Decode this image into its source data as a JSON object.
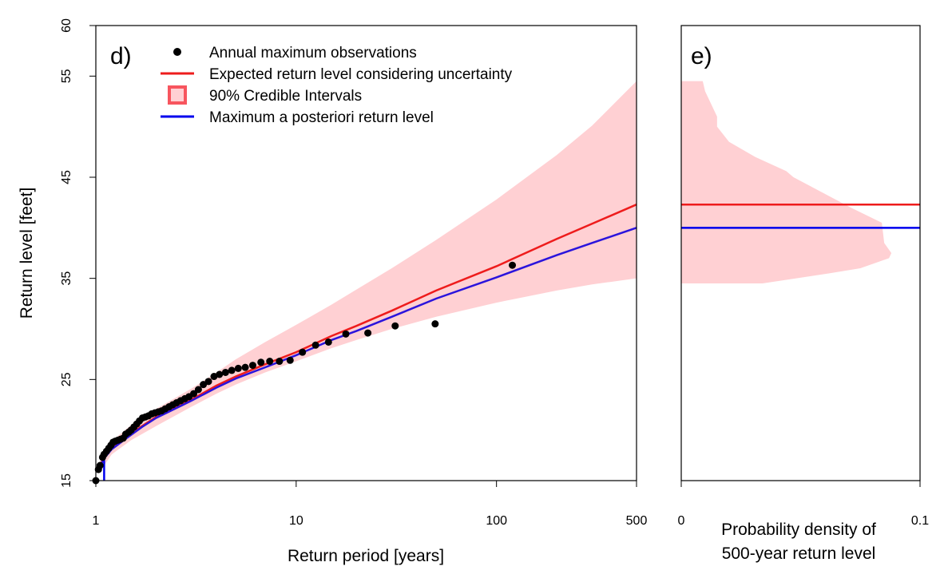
{
  "chart_data": [
    {
      "panel_label": "d)",
      "type": "line",
      "xlabel": "Return period [years]",
      "ylabel": "Return level [feet]",
      "x_scale": "log",
      "xlim": [
        1,
        500
      ],
      "ylim": [
        15,
        60
      ],
      "x_ticks": [
        1,
        10,
        100,
        500
      ],
      "x_tick_labels": [
        "1",
        "10",
        "100",
        "500"
      ],
      "y_ticks": [
        15,
        25,
        35,
        45,
        55,
        60
      ],
      "y_tick_labels": [
        "15",
        "25",
        "35",
        "45",
        "55",
        "60"
      ],
      "grid": false,
      "legend": {
        "placement": "top-left",
        "entries": [
          {
            "label": "Annual maximum observations",
            "symbol": "point",
            "color": "#000000"
          },
          {
            "label": "Expected return level considering uncertainty",
            "symbol": "line",
            "color": "#ee1c1c"
          },
          {
            "label": "90% Credible Intervals",
            "symbol": "box",
            "color": "#f7555e"
          },
          {
            "label": "Maximum a posteriori return level",
            "symbol": "line",
            "color": "#0000ee"
          }
        ]
      },
      "series": [
        {
          "name": "Expected return level considering uncertainty",
          "kind": "line",
          "color": "#ee1c1c",
          "x": [
            1.05,
            1.1,
            1.2,
            1.4,
            1.7,
            2,
            3,
            4,
            5,
            7,
            10,
            15,
            20,
            30,
            50,
            100,
            200,
            300,
            500
          ],
          "y": [
            16.5,
            17.3,
            18.2,
            19.2,
            20.4,
            21.3,
            23.0,
            24.4,
            25.3,
            26.5,
            27.7,
            29.3,
            30.3,
            31.8,
            33.8,
            36.2,
            38.9,
            40.4,
            42.3
          ]
        },
        {
          "name": "Maximum a posteriori return level",
          "kind": "line",
          "color": "#2b14dc",
          "x": [
            1.05,
            1.1,
            1.2,
            1.4,
            1.7,
            2,
            3,
            4,
            5,
            7,
            10,
            15,
            20,
            30,
            50,
            100,
            200,
            300,
            500
          ],
          "y": [
            16.4,
            17.2,
            18.1,
            19.1,
            20.3,
            21.2,
            22.9,
            24.2,
            25.1,
            26.2,
            27.4,
            28.9,
            29.8,
            31.2,
            33.0,
            35.1,
            37.3,
            38.5,
            40.0
          ]
        },
        {
          "name": "90% Credible Intervals",
          "kind": "band",
          "color": "#ffd0d3",
          "x": [
            1.05,
            1.2,
            1.5,
            2,
            3,
            4,
            5,
            7,
            10,
            15,
            20,
            30,
            50,
            100,
            200,
            300,
            500
          ],
          "upper": [
            17.0,
            18.9,
            20.5,
            22.1,
            24.1,
            25.7,
            27.0,
            28.7,
            30.4,
            32.4,
            33.9,
            36.0,
            38.8,
            42.8,
            47.2,
            50.1,
            54.5
          ],
          "lower": [
            15.9,
            17.6,
            19.0,
            20.4,
            22.3,
            23.6,
            24.5,
            25.7,
            26.8,
            28.1,
            28.9,
            30.0,
            31.2,
            32.6,
            33.8,
            34.4,
            35.0
          ]
        },
        {
          "name": "Annual maximum observations",
          "kind": "scatter",
          "color": "#000000",
          "x": [
            1.0,
            1.03,
            1.05,
            1.08,
            1.1,
            1.13,
            1.16,
            1.19,
            1.22,
            1.25,
            1.29,
            1.33,
            1.37,
            1.41,
            1.46,
            1.5,
            1.55,
            1.6,
            1.65,
            1.71,
            1.77,
            1.83,
            1.9,
            1.97,
            2.05,
            2.13,
            2.22,
            2.32,
            2.42,
            2.53,
            2.65,
            2.78,
            2.92,
            3.08,
            3.25,
            3.44,
            3.65,
            3.89,
            4.14,
            4.44,
            4.77,
            5.14,
            5.57,
            6.07,
            6.67,
            7.38,
            8.25,
            9.33,
            10.75,
            12.5,
            14.5,
            17.7,
            22.8,
            31.2,
            49.4,
            120
          ],
          "y": [
            15.0,
            16.1,
            16.5,
            17.3,
            17.6,
            17.9,
            18.2,
            18.5,
            18.8,
            18.9,
            19.0,
            19.1,
            19.2,
            19.6,
            19.8,
            20.0,
            20.3,
            20.6,
            20.9,
            21.2,
            21.3,
            21.4,
            21.6,
            21.7,
            21.8,
            21.9,
            22.1,
            22.3,
            22.5,
            22.7,
            22.9,
            23.1,
            23.3,
            23.6,
            24.0,
            24.5,
            24.8,
            25.3,
            25.5,
            25.7,
            25.9,
            26.1,
            26.2,
            26.4,
            26.7,
            26.8,
            26.8,
            26.9,
            27.7,
            28.4,
            28.7,
            29.5,
            29.6,
            30.3,
            30.5,
            36.3
          ]
        }
      ],
      "vertical_segment": {
        "color": "#0000ee",
        "x": 1.1,
        "y": [
          15,
          17.2
        ]
      }
    },
    {
      "panel_label": "e)",
      "type": "area",
      "xlabel": "Probability density of 500-year return level",
      "xlim": [
        0,
        0.1
      ],
      "ylim": [
        15,
        60
      ],
      "x_ticks": [
        0,
        0.1
      ],
      "x_tick_labels": [
        "0",
        "0.1"
      ],
      "grid": false,
      "series": [
        {
          "name": "Probability density of 500-year return level",
          "kind": "density",
          "color": "#ffd0d3",
          "y": [
            34.5,
            35.5,
            36.0,
            37.0,
            37.5,
            38.5,
            40.5,
            42.0,
            43.5,
            45.0,
            45.6,
            47.0,
            48.5,
            50.0,
            51.0,
            52.5,
            53.5,
            54.5
          ],
          "density": [
            0.034,
            0.062,
            0.075,
            0.087,
            0.088,
            0.085,
            0.084,
            0.071,
            0.059,
            0.047,
            0.044,
            0.031,
            0.02,
            0.015,
            0.015,
            0.012,
            0.01,
            0.009
          ]
        },
        {
          "name": "Expected return level considering uncertainty",
          "kind": "hline",
          "color": "#ee1c1c",
          "y": 42.3
        },
        {
          "name": "Maximum a posteriori return level",
          "kind": "hline",
          "color": "#0000ee",
          "y": 40.0
        }
      ]
    }
  ]
}
